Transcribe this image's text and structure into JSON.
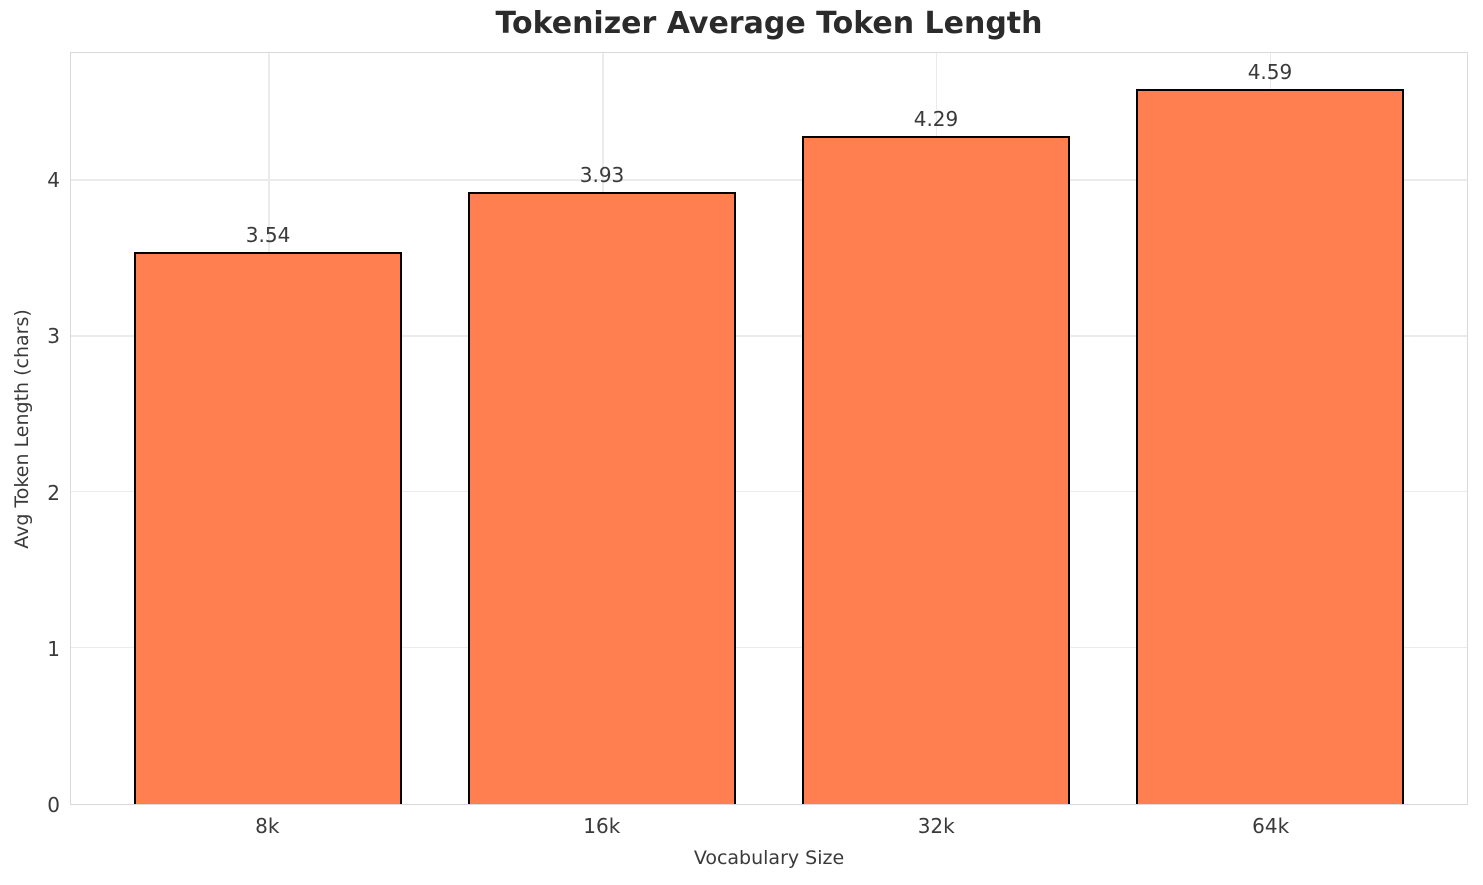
{
  "chart_data": {
    "type": "bar",
    "title": "Tokenizer Average Token Length",
    "xlabel": "Vocabulary Size",
    "ylabel": "Avg Token Length (chars)",
    "categories": [
      "8k",
      "16k",
      "32k",
      "64k"
    ],
    "values": [
      3.54,
      3.93,
      4.29,
      4.59
    ],
    "value_labels": [
      "3.54",
      "3.93",
      "4.29",
      "4.59"
    ],
    "ylim": [
      0,
      4.82
    ],
    "yticks": [
      0,
      1,
      2,
      3,
      4
    ],
    "grid": true,
    "legend_position": "none",
    "colors": {
      "bar_fill": "#FF7F50",
      "bar_edge": "#000000",
      "grid_line": "#ebebeb",
      "spine": "#d9d9d9",
      "title_text": "#2b2b2b",
      "tick_text": "#3a3a3a"
    }
  }
}
